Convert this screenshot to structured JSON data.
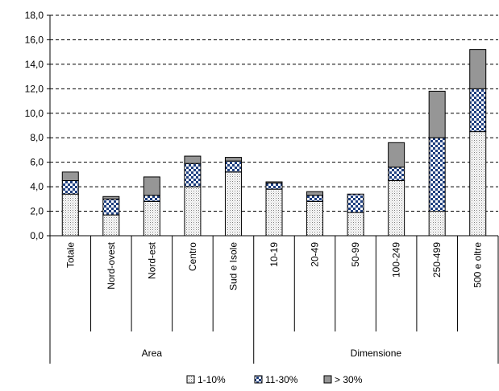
{
  "chart_data": {
    "type": "bar",
    "stacked": true,
    "ylim": [
      0,
      18
    ],
    "y_ticks": [
      "0,0",
      "2,0",
      "4,0",
      "6,0",
      "8,0",
      "10,0",
      "12,0",
      "14,0",
      "16,0",
      "18,0"
    ],
    "y_tick_values": [
      0,
      2,
      4,
      6,
      8,
      10,
      12,
      14,
      16,
      18
    ],
    "grid": true,
    "legend_position": "bottom",
    "categories": [
      "Totale",
      "Nord-ovest",
      "Nord-est",
      "Centro",
      "Sud e Isole",
      "10-19",
      "20-49",
      "50-99",
      "100-249",
      "250-499",
      "500 e oltre"
    ],
    "groups": [
      {
        "label": "Area",
        "categories": [
          "Totale",
          "Nord-ovest",
          "Nord-est",
          "Centro",
          "Sud e Isole"
        ]
      },
      {
        "label": "Dimensione",
        "categories": [
          "10-19",
          "20-49",
          "50-99",
          "100-249",
          "250-499",
          "500 e oltre"
        ]
      }
    ],
    "series": [
      {
        "name": "1-10%",
        "color": "#f2f2f2",
        "pattern": "dots",
        "values": [
          3.4,
          1.7,
          2.8,
          4.0,
          5.2,
          3.8,
          2.8,
          1.9,
          4.5,
          2.0,
          8.5
        ]
      },
      {
        "name": "11-30%",
        "color": "#1f3f7f",
        "pattern": "checker",
        "values": [
          1.1,
          1.3,
          0.5,
          1.9,
          0.9,
          0.5,
          0.5,
          1.5,
          1.1,
          6.0,
          3.5
        ]
      },
      {
        "name": "> 30%",
        "color": "#969696",
        "pattern": "solid",
        "values": [
          0.7,
          0.2,
          1.5,
          0.6,
          0.3,
          0.1,
          0.3,
          0.0,
          2.0,
          3.8,
          3.2
        ]
      }
    ]
  }
}
